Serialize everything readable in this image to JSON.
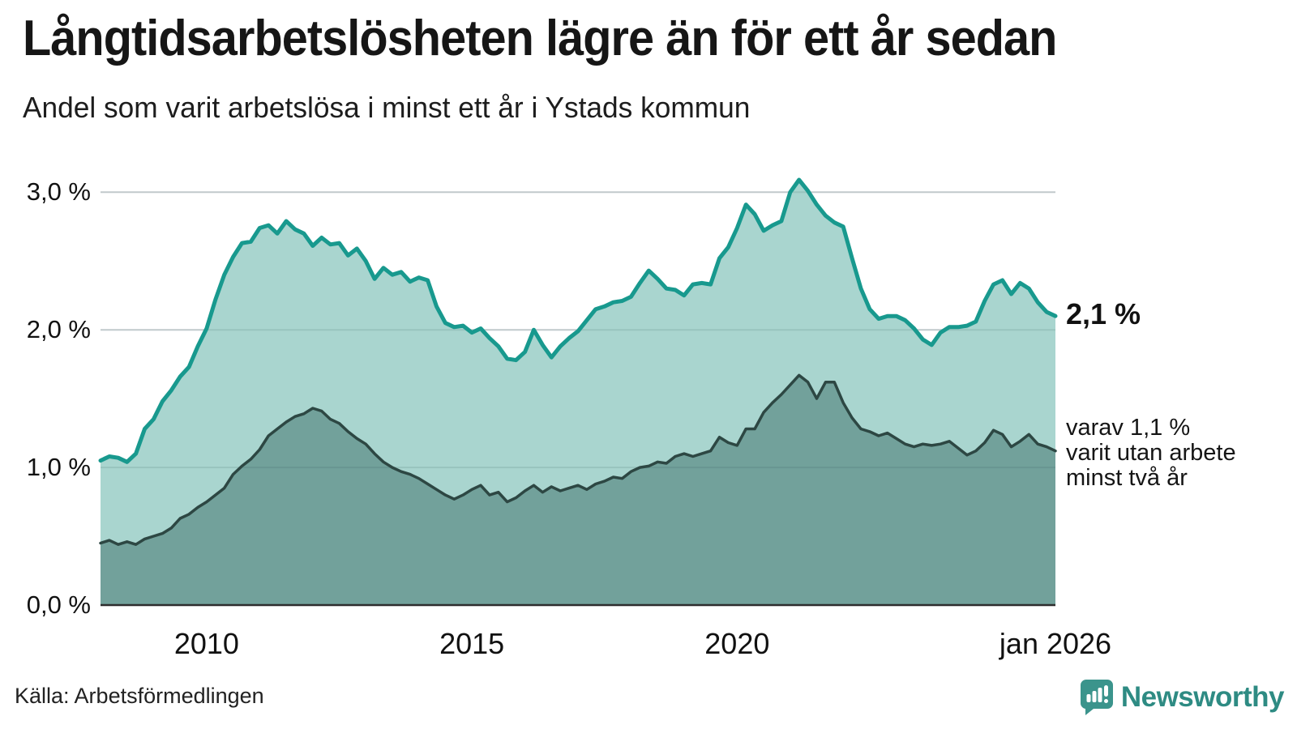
{
  "header": {
    "title": "Långtidsarbetslösheten lägre än för ett år sedan",
    "subtitle": "Andel som varit arbetslösa i minst ett år i Ystads kommun"
  },
  "chart_data": {
    "type": "area",
    "title": "Långtidsarbetslösheten lägre än för ett år sedan",
    "subtitle": "Andel som varit arbetslösa i minst ett år i Ystads kommun",
    "x_start": 2008.0,
    "x_step_years": 0.1666667,
    "xlim": [
      2008.0,
      2026.0
    ],
    "ylim": [
      0,
      3.19
    ],
    "grid": "horizontal",
    "legend_position": "none",
    "y_ticks": [
      {
        "value": 0,
        "label": "0,0 %"
      },
      {
        "value": 1,
        "label": "1,0 %"
      },
      {
        "value": 2,
        "label": "2,0 %"
      },
      {
        "value": 3,
        "label": "3,0 %"
      }
    ],
    "x_ticks": [
      {
        "value": 2010,
        "label": "2010"
      },
      {
        "value": 2015,
        "label": "2015"
      },
      {
        "value": 2020,
        "label": "2020"
      },
      {
        "value": 2026,
        "label": "jan 2026"
      }
    ],
    "series": [
      {
        "name": "arbetslösa minst ett år",
        "line_color": "#18998e",
        "fill_color": "#a9d5cf",
        "line_width": 5,
        "end_value_label": "2,1 %",
        "values": [
          1.05,
          1.08,
          1.07,
          1.04,
          1.1,
          1.28,
          1.35,
          1.48,
          1.56,
          1.66,
          1.73,
          1.88,
          2.01,
          2.22,
          2.4,
          2.53,
          2.63,
          2.64,
          2.74,
          2.76,
          2.7,
          2.79,
          2.73,
          2.7,
          2.61,
          2.67,
          2.62,
          2.63,
          2.54,
          2.59,
          2.5,
          2.37,
          2.45,
          2.4,
          2.42,
          2.35,
          2.38,
          2.36,
          2.17,
          2.05,
          2.02,
          2.03,
          1.98,
          2.01,
          1.94,
          1.88,
          1.79,
          1.78,
          1.84,
          2.0,
          1.89,
          1.8,
          1.88,
          1.94,
          1.99,
          2.07,
          2.15,
          2.17,
          2.2,
          2.21,
          2.24,
          2.34,
          2.43,
          2.37,
          2.3,
          2.29,
          2.25,
          2.33,
          2.34,
          2.33,
          2.52,
          2.6,
          2.74,
          2.91,
          2.84,
          2.72,
          2.76,
          2.79,
          3.0,
          3.09,
          3.01,
          2.91,
          2.83,
          2.78,
          2.75,
          2.52,
          2.3,
          2.15,
          2.08,
          2.1,
          2.1,
          2.07,
          2.01,
          1.93,
          1.89,
          1.98,
          2.02,
          2.02,
          2.03,
          2.06,
          2.21,
          2.33,
          2.36,
          2.26,
          2.34,
          2.3,
          2.2,
          2.13,
          2.1
        ]
      },
      {
        "name": "varav arbetslösa minst två år",
        "line_color": "#2d4743",
        "fill_color": "#72a19b",
        "line_width": 3.5,
        "end_value_label_lines": [
          "varav 1,1 %",
          "varit utan arbete",
          "minst två år"
        ],
        "values": [
          0.45,
          0.47,
          0.44,
          0.46,
          0.44,
          0.48,
          0.5,
          0.52,
          0.56,
          0.63,
          0.66,
          0.71,
          0.75,
          0.8,
          0.85,
          0.95,
          1.01,
          1.06,
          1.13,
          1.23,
          1.28,
          1.33,
          1.37,
          1.39,
          1.43,
          1.41,
          1.35,
          1.32,
          1.26,
          1.21,
          1.17,
          1.1,
          1.04,
          1.0,
          0.97,
          0.95,
          0.92,
          0.88,
          0.84,
          0.8,
          0.77,
          0.8,
          0.84,
          0.87,
          0.8,
          0.82,
          0.75,
          0.78,
          0.83,
          0.87,
          0.82,
          0.86,
          0.83,
          0.85,
          0.87,
          0.84,
          0.88,
          0.9,
          0.93,
          0.92,
          0.97,
          1.0,
          1.01,
          1.04,
          1.03,
          1.08,
          1.1,
          1.08,
          1.1,
          1.12,
          1.22,
          1.18,
          1.16,
          1.28,
          1.28,
          1.4,
          1.47,
          1.53,
          1.6,
          1.67,
          1.62,
          1.5,
          1.62,
          1.62,
          1.47,
          1.36,
          1.28,
          1.26,
          1.23,
          1.25,
          1.21,
          1.17,
          1.15,
          1.17,
          1.16,
          1.17,
          1.19,
          1.14,
          1.09,
          1.12,
          1.18,
          1.27,
          1.24,
          1.15,
          1.19,
          1.24,
          1.17,
          1.15,
          1.12
        ]
      }
    ],
    "colors": {
      "gridline": "#d8dcde",
      "gridline_on_fill": "rgba(30,75,70,0.12)",
      "baseline": "#2d2d2d"
    }
  },
  "footer": {
    "source": "Källa: Arbetsförmedlingen",
    "brand": "Newsworthy",
    "brand_color": "#2e8b83",
    "brand_icon_color": "#3b948c"
  }
}
